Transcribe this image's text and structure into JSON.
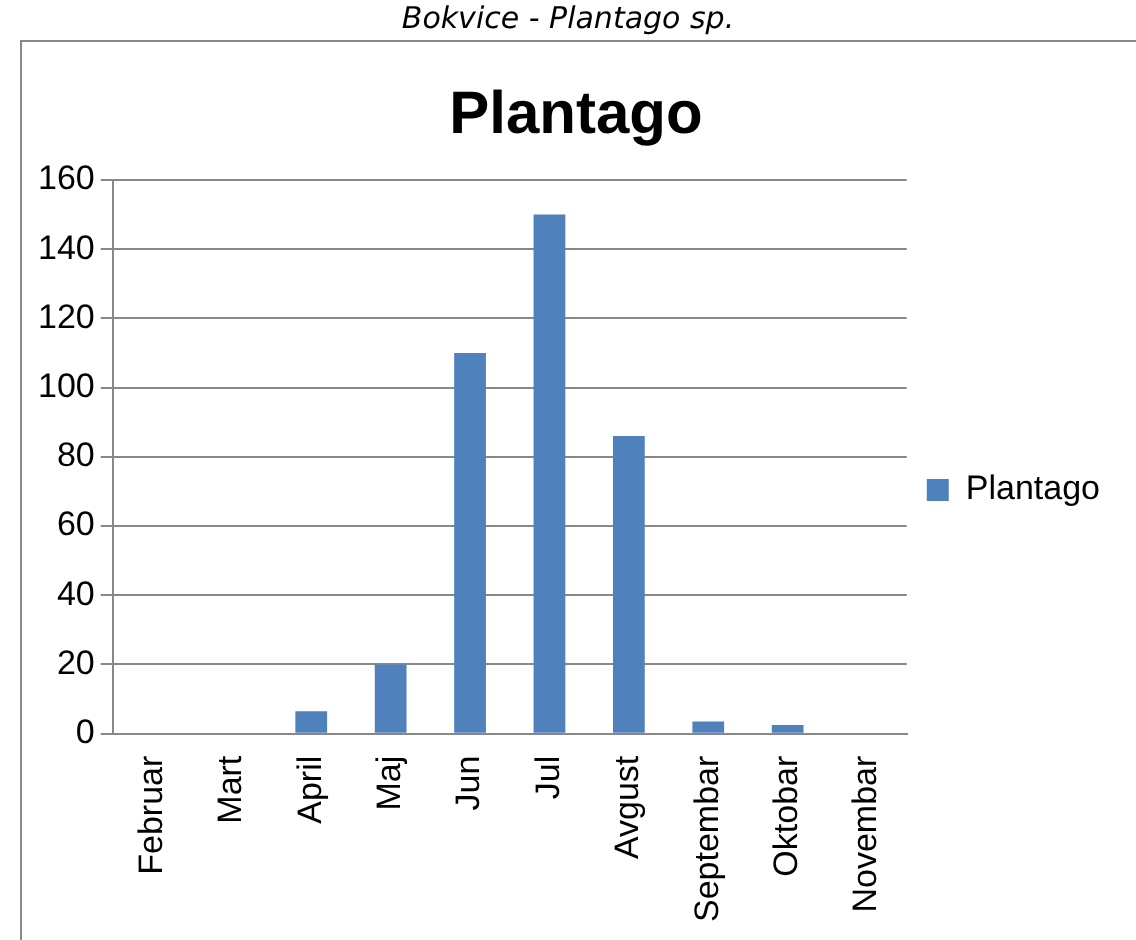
{
  "chart_data": {
    "type": "bar",
    "title": "Plantago",
    "subtitle": "Bokvice - Plantago sp.",
    "categories": [
      "Februar",
      "Mart",
      "April",
      "Maj",
      "Jun",
      "Jul",
      "Avgust",
      "Septembar",
      "Oktobar",
      "Novembar"
    ],
    "series": [
      {
        "name": "Plantago",
        "color": "#4f81bd",
        "values": [
          0,
          0,
          6.5,
          20,
          110,
          150,
          86,
          3.5,
          2.5,
          0
        ]
      }
    ],
    "ylim": [
      0,
      160
    ],
    "yticks": [
      0,
      20,
      40,
      60,
      80,
      100,
      120,
      140,
      160
    ],
    "grid": "y",
    "legend": "right"
  }
}
